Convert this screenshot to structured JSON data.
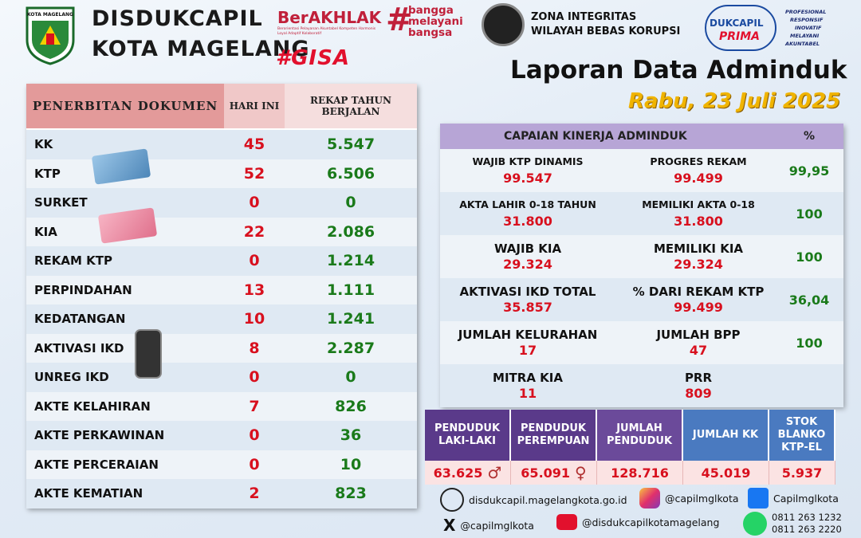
{
  "header": {
    "logo_text": "KOTA MAGELANG",
    "org_line1": "DISDUKCAPIL",
    "org_line2": "KOTA MAGELANG",
    "berakhlak": "BerAKHLAK",
    "berakhlak_sub": "Berorientasi Pelayanan Akuntabel Kompeten Harmonis Loyal Adaptif Kolaboratif",
    "bangga": [
      "bangga",
      "melayani",
      "bangsa"
    ],
    "gisa": "#GISA",
    "zi_line1": "ZONA INTEGRITAS",
    "zi_line2": "WILAYAH BEBAS KORUPSI",
    "prima_top": "DUKCAPIL",
    "prima_bottom": "PRIMA",
    "motto": [
      "PROFESIONAL",
      "RESPONSIF",
      "INOVATIF",
      "MELAYANI",
      "AKUNTABEL"
    ],
    "title": "Laporan Data Adminduk",
    "date": "Rabu, 23 Juli 2025"
  },
  "left_table": {
    "headers": [
      "PENERBITAN DOKUMEN",
      "HARI INI",
      "REKAP TAHUN BERJALAN"
    ],
    "rows": [
      {
        "name": "KK",
        "today": "45",
        "year": "5.547"
      },
      {
        "name": "KTP",
        "today": "52",
        "year": "6.506"
      },
      {
        "name": "SURKET",
        "today": "0",
        "year": "0"
      },
      {
        "name": "KIA",
        "today": "22",
        "year": "2.086"
      },
      {
        "name": "REKAM KTP",
        "today": "0",
        "year": "1.214"
      },
      {
        "name": "PERPINDAHAN",
        "today": "13",
        "year": "1.111"
      },
      {
        "name": "KEDATANGAN",
        "today": "10",
        "year": "1.241"
      },
      {
        "name": "AKTIVASI IKD",
        "today": "8",
        "year": "2.287"
      },
      {
        "name": "UNREG IKD",
        "today": "0",
        "year": "0"
      },
      {
        "name": "AKTE KELAHIRAN",
        "today": "7",
        "year": "826"
      },
      {
        "name": "AKTE PERKAWINAN",
        "today": "0",
        "year": "36"
      },
      {
        "name": "AKTE PERCERAIAN",
        "today": "0",
        "year": "10"
      },
      {
        "name": "AKTE KEMATIAN",
        "today": "2",
        "year": "823"
      }
    ]
  },
  "capaian": {
    "header": "CAPAIAN KINERJA ADMINDUK",
    "pct_header": "%",
    "rows": [
      {
        "l1": "WAJIB KTP DINAMIS",
        "v1": "99.547",
        "l2": "PROGRES REKAM",
        "v2": "99.499",
        "pct": "99,95"
      },
      {
        "l1": "AKTA LAHIR 0-18 TAHUN",
        "v1": "31.800",
        "l2": "MEMILIKI AKTA 0-18",
        "v2": "31.800",
        "pct": "100"
      },
      {
        "l1": "WAJIB KIA",
        "v1": "29.324",
        "l2": "MEMILIKI KIA",
        "v2": "29.324",
        "pct": "100"
      },
      {
        "l1": "AKTIVASI IKD TOTAL",
        "v1": "35.857",
        "l2": "% DARI REKAM KTP",
        "v2": "99.499",
        "pct": "36,04"
      },
      {
        "l1": "JUMLAH KELURAHAN",
        "v1": "17",
        "l2": "JUMLAH BPP",
        "v2": "47",
        "pct": "100"
      },
      {
        "l1": "MITRA KIA",
        "v1": "11",
        "l2": "PRR",
        "v2": "809",
        "pct": ""
      }
    ]
  },
  "population": {
    "cols": [
      {
        "label": "PENDUDUK LAKI-LAKI",
        "value": "63.625",
        "color": "#5a3a8a"
      },
      {
        "label": "PENDUDUK PEREMPUAN",
        "value": "65.091",
        "color": "#5a3a8a"
      },
      {
        "label": "JUMLAH PENDUDUK",
        "value": "128.716",
        "color": "#6b4a9a"
      },
      {
        "label": "JUMLAH KK",
        "value": "45.019",
        "color": "#4a7ac0"
      },
      {
        "label": "STOK BLANKO KTP-EL",
        "value": "5.937",
        "color": "#4a7ac0"
      }
    ]
  },
  "social": {
    "web": "disdukcapil.magelangkota.go.id",
    "instagram": "@capilmglkota",
    "facebook": "Capilmglkota",
    "x": "@capilmglkota",
    "youtube": "@disdukcapilkotamagelang",
    "wa1": "0811 263 1232",
    "wa2": "0811 263 2220"
  },
  "colors": {
    "red": "#d8101e",
    "green": "#1a7a1a",
    "purple_head": "#b7a5d6",
    "accent_gold": "#f0b400"
  }
}
